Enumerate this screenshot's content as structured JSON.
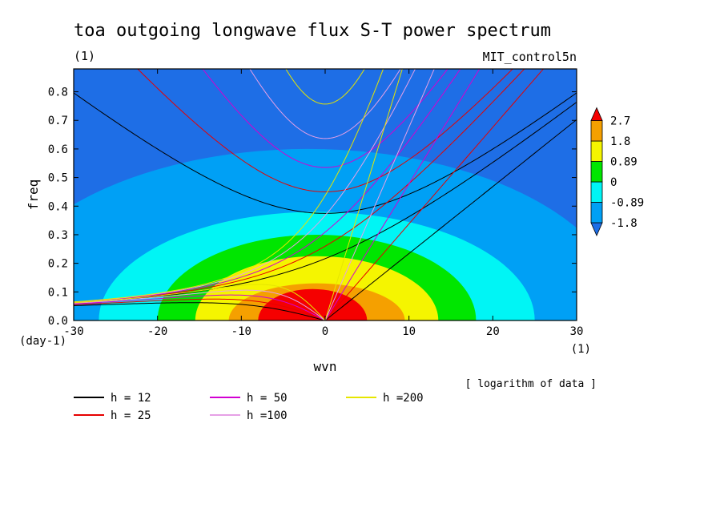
{
  "chart_data": {
    "type": "heatmap",
    "title": "toa outgoing longwave flux S-T power spectrum",
    "subtitle_left": "(1)",
    "subtitle_right": "MIT_control5n",
    "xlabel": "wvn",
    "ylabel": "freq",
    "x_unit": "(1)",
    "y_unit": "(day-1)",
    "xlim": [
      -30,
      30
    ],
    "ylim": [
      0,
      0.88
    ],
    "x_ticks": [
      -30,
      -20,
      -10,
      0,
      10,
      20,
      30
    ],
    "y_ticks": [
      0.0,
      0.1,
      0.2,
      0.3,
      0.4,
      0.5,
      0.6,
      0.7,
      0.8
    ],
    "x_tick_labels": [
      "-30",
      "-20",
      "-10",
      "0",
      "10",
      "20",
      "30"
    ],
    "y_tick_labels": [
      "0.0",
      "0.1",
      "0.2",
      "0.3",
      "0.4",
      "0.5",
      "0.6",
      "0.7",
      "0.8"
    ],
    "note": "[ logarithm of data ]",
    "colorbar": {
      "levels": [
        "2.7",
        "1.8",
        "0.89",
        "0",
        "-0.89",
        "-1.8"
      ],
      "colors": [
        "#1e6ee6",
        "#00a0f5",
        "#00f5f5",
        "#00e600",
        "#f5f500",
        "#f5a000",
        "#f50000"
      ]
    },
    "contour_fill": [
      {
        "color": "#00a0f5",
        "a": 38,
        "b": 0.6,
        "x0": -2
      },
      {
        "color": "#00f5f5",
        "a": 26,
        "b": 0.38,
        "x0": -1
      },
      {
        "color": "#00e600",
        "a": 19,
        "b": 0.3,
        "x0": -1
      },
      {
        "color": "#f5f500",
        "a": 14.5,
        "b": 0.225,
        "x0": -1
      },
      {
        "color": "#f5a000",
        "a": 10.5,
        "b": 0.13,
        "x0": -1
      },
      {
        "color": "#f50000",
        "a": 6.5,
        "b": 0.11,
        "x0": -1.5
      }
    ],
    "legend": [
      {
        "label": "h = 12",
        "color": "#000000",
        "h": 12
      },
      {
        "label": "h = 25",
        "color": "#e60000",
        "h": 25
      },
      {
        "label": "h = 50",
        "color": "#d200d2",
        "h": 50
      },
      {
        "label": "h =100",
        "color": "#e6a0e6",
        "h": 100
      },
      {
        "label": "h =200",
        "color": "#e6e600",
        "h": 200
      }
    ]
  }
}
